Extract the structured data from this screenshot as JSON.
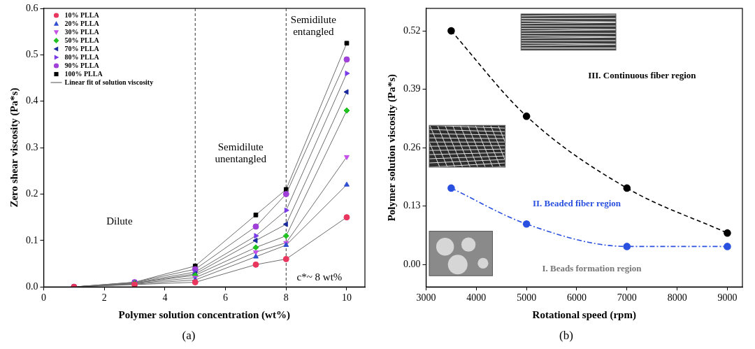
{
  "chart_data": [
    {
      "type": "line",
      "panel_label": "(a)",
      "x_label": "Polymer solution concentration (wt%)",
      "y_label": "Zero shear viscosity (Pa*s)",
      "xlim": [
        0,
        10.6
      ],
      "xticks": [
        0,
        2,
        4,
        6,
        8,
        10
      ],
      "ylim": [
        0,
        0.6
      ],
      "yticks": [
        {
          "value": 0,
          "label": "0.0"
        },
        0.1,
        0.2,
        0.3,
        0.4,
        0.5,
        0.6
      ],
      "grid": false,
      "legend": "upper left",
      "line_style": "solid",
      "fit": {
        "name": "Linear fit of solution viscosity",
        "color": "#6e6e6e"
      },
      "x": [
        1,
        3,
        5,
        7,
        8,
        10
      ],
      "series": [
        {
          "name": "10% PLLA",
          "color": "#e8365e",
          "marker": "circle",
          "values": [
            0.0,
            0.005,
            0.01,
            0.048,
            0.06,
            0.15
          ]
        },
        {
          "name": "20% PLLA",
          "color": "#2f4fd0",
          "marker": "triangle-up",
          "values": [
            0.0,
            0.006,
            0.015,
            0.065,
            0.09,
            0.22
          ]
        },
        {
          "name": "30% PLLA",
          "color": "#c64fe8",
          "marker": "triangle-down",
          "values": [
            0.0,
            0.007,
            0.02,
            0.075,
            0.095,
            0.28
          ]
        },
        {
          "name": "50% PLLA",
          "color": "#1fc21f",
          "marker": "diamond",
          "values": [
            0.0,
            0.008,
            0.025,
            0.085,
            0.11,
            0.38
          ]
        },
        {
          "name": "70% PLLA",
          "color": "#1a2a9c",
          "marker": "triangle-left",
          "values": [
            0.0,
            0.008,
            0.028,
            0.1,
            0.135,
            0.42
          ]
        },
        {
          "name": "80% PLLA",
          "color": "#7a3ce8",
          "marker": "triangle-right",
          "values": [
            0.0,
            0.009,
            0.032,
            0.11,
            0.165,
            0.46
          ]
        },
        {
          "name": "90% PLLA",
          "color": "#a040d8",
          "marker": "circle",
          "values": [
            0.0,
            0.01,
            0.038,
            0.13,
            0.2,
            0.49
          ]
        },
        {
          "name": "100% PLLA",
          "color": "#000000",
          "marker": "square",
          "values": [
            0.0,
            0.01,
            0.045,
            0.155,
            0.21,
            0.525
          ]
        }
      ],
      "vlines": [
        5,
        8
      ],
      "annotations": [
        {
          "text": [
            "Dilute"
          ],
          "x": 2.5,
          "y": 0.14,
          "color": "#000000"
        },
        {
          "text": [
            "Semidilute",
            "unentangled"
          ],
          "x": 6.5,
          "y": 0.3,
          "color": "#000000"
        },
        {
          "text": [
            "Semidilute",
            "entangled"
          ],
          "x": 8.9,
          "y": 0.575,
          "color": "#000000"
        },
        {
          "text": [
            "c*~ 8 wt%"
          ],
          "x": 9.1,
          "y": 0.02,
          "color": "#000000"
        }
      ]
    },
    {
      "type": "scatter",
      "panel_label": "(b)",
      "x_label": "Rotational speed (rpm)",
      "y_label": "Polymer solution viscosity (Pa*s)",
      "xlim": [
        3000,
        9300
      ],
      "xticks": [
        3000,
        4000,
        5000,
        6000,
        7000,
        8000,
        9000
      ],
      "ylim": [
        -0.05,
        0.57
      ],
      "yticks": [
        {
          "value": 0,
          "label": "0.00"
        },
        0.13,
        0.26,
        0.39,
        0.52
      ],
      "grid": false,
      "x": [
        3500,
        5000,
        7000,
        9000
      ],
      "series": [
        {
          "color": "#000000",
          "marker": "circle",
          "line_style": "dashed",
          "values": [
            0.52,
            0.33,
            0.17,
            0.07
          ]
        },
        {
          "color": "#2a50e0",
          "marker": "circle",
          "line_style": "dash-dot",
          "values": [
            0.17,
            0.09,
            0.04,
            0.04
          ]
        }
      ],
      "annotations": [
        {
          "text": [
            "III. Continuous fiber region"
          ],
          "x": 7300,
          "y": 0.42,
          "color": "#000000"
        },
        {
          "text": [
            "II. Beaded fiber region"
          ],
          "x": 6000,
          "y": 0.135,
          "color": "#2a50e0"
        },
        {
          "text": [
            "I. Beads formation region"
          ],
          "x": 6300,
          "y": -0.01,
          "color": "#777777"
        }
      ]
    }
  ]
}
